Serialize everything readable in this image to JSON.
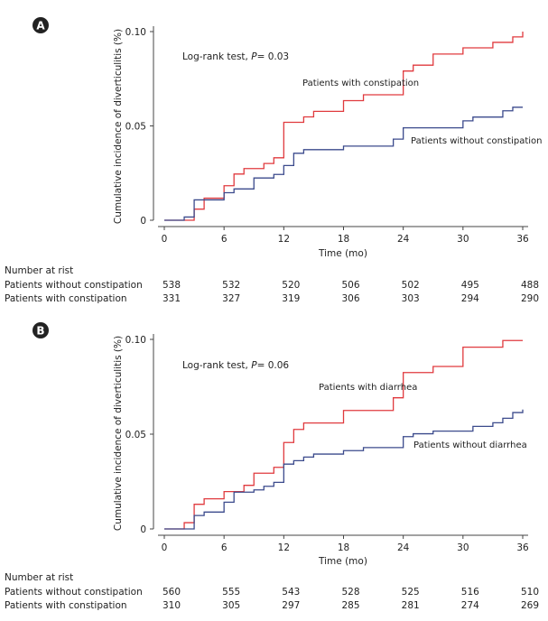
{
  "chart_data": [
    {
      "type": "line",
      "panel_label": "A",
      "annotation": "Log-rank test, ",
      "annotation_p": "P",
      "annotation_value": "= 0.03",
      "xlabel": "Time (mo)",
      "ylabel": "Cumulative incidence of diverticulitis (%)",
      "xlim": [
        0,
        36
      ],
      "ylim": [
        0,
        0.1
      ],
      "xticks": [
        "0",
        "6",
        "12",
        "18",
        "24",
        "30",
        "36"
      ],
      "yticks": [
        "0",
        "0.05",
        "0.10"
      ],
      "series": [
        {
          "name": "Patients with constipation",
          "color": "#e03a3e",
          "steps": [
            [
              0,
              0
            ],
            [
              3,
              0.0059
            ],
            [
              4,
              0.0117
            ],
            [
              6,
              0.0183
            ],
            [
              7,
              0.0245
            ],
            [
              8,
              0.0274
            ],
            [
              10,
              0.0301
            ],
            [
              11,
              0.0331
            ],
            [
              12,
              0.0519
            ],
            [
              14,
              0.0548
            ],
            [
              15,
              0.0577
            ],
            [
              18,
              0.0634
            ],
            [
              20,
              0.0665
            ],
            [
              24,
              0.0791
            ],
            [
              25,
              0.0822
            ],
            [
              27,
              0.0881
            ],
            [
              30,
              0.0914
            ],
            [
              33,
              0.0943
            ],
            [
              35,
              0.0972
            ],
            [
              36,
              0.1
            ]
          ]
        },
        {
          "name": "Patients without constipation",
          "color": "#3b4a8c",
          "steps": [
            [
              0,
              0
            ],
            [
              2,
              0.0017
            ],
            [
              3,
              0.0108
            ],
            [
              6,
              0.0146
            ],
            [
              7,
              0.0166
            ],
            [
              9,
              0.0224
            ],
            [
              11,
              0.0243
            ],
            [
              12,
              0.029
            ],
            [
              13,
              0.0355
            ],
            [
              14,
              0.0374
            ],
            [
              18,
              0.0393
            ],
            [
              23,
              0.043
            ],
            [
              24,
              0.049
            ],
            [
              30,
              0.0527
            ],
            [
              31,
              0.0547
            ],
            [
              34,
              0.058
            ],
            [
              35,
              0.0599
            ],
            [
              36,
              0.0599
            ]
          ]
        }
      ],
      "risk_table": {
        "title": "Number at rist",
        "rows": [
          {
            "label": "Patients without constipation",
            "values": [
              "538",
              "532",
              "520",
              "506",
              "502",
              "495",
              "488"
            ]
          },
          {
            "label": "Patients with constipation",
            "values": [
              "331",
              "327",
              "319",
              "306",
              "303",
              "294",
              "290"
            ]
          }
        ]
      }
    },
    {
      "type": "line",
      "panel_label": "B",
      "annotation": "Log-rank test, ",
      "annotation_p": "P",
      "annotation_value": "= 0.06",
      "xlabel": "Time (mo)",
      "ylabel": "Cumulative incidence of diverticulitis (%)",
      "xlim": [
        0,
        36
      ],
      "ylim": [
        0,
        0.1
      ],
      "xticks": [
        "0",
        "6",
        "12",
        "18",
        "24",
        "30",
        "36"
      ],
      "yticks": [
        "0",
        "0.05",
        "0.10"
      ],
      "series": [
        {
          "name": "Patients with diarrhea",
          "color": "#e03a3e",
          "steps": [
            [
              0,
              0
            ],
            [
              2,
              0.0033
            ],
            [
              3,
              0.013
            ],
            [
              4,
              0.0159
            ],
            [
              6,
              0.0197
            ],
            [
              8,
              0.023
            ],
            [
              9,
              0.0294
            ],
            [
              11,
              0.0325
            ],
            [
              12,
              0.0456
            ],
            [
              13,
              0.0525
            ],
            [
              14,
              0.0559
            ],
            [
              18,
              0.0625
            ],
            [
              23,
              0.0692
            ],
            [
              24,
              0.0825
            ],
            [
              27,
              0.0857
            ],
            [
              30,
              0.0959
            ],
            [
              34,
              0.0994
            ],
            [
              36,
              0.0994
            ]
          ]
        },
        {
          "name": "Patients without diarrhea",
          "color": "#3b4a8c",
          "steps": [
            [
              0,
              0
            ],
            [
              3,
              0.0071
            ],
            [
              4,
              0.0089
            ],
            [
              6,
              0.0141
            ],
            [
              7,
              0.0194
            ],
            [
              9,
              0.0206
            ],
            [
              10,
              0.0225
            ],
            [
              11,
              0.0246
            ],
            [
              12,
              0.0342
            ],
            [
              13,
              0.036
            ],
            [
              14,
              0.0379
            ],
            [
              15,
              0.0395
            ],
            [
              18,
              0.0413
            ],
            [
              20,
              0.0429
            ],
            [
              24,
              0.0487
            ],
            [
              25,
              0.0502
            ],
            [
              27,
              0.0516
            ],
            [
              31,
              0.0541
            ],
            [
              33,
              0.056
            ],
            [
              34,
              0.0584
            ],
            [
              35,
              0.0614
            ],
            [
              36,
              0.063
            ]
          ]
        }
      ],
      "risk_table": {
        "title": "Number at rist",
        "rows": [
          {
            "label": "Patients without constipation",
            "values": [
              "560",
              "555",
              "543",
              "528",
              "525",
              "516",
              "510"
            ]
          },
          {
            "label": "Patients with constipation",
            "values": [
              "310",
              "305",
              "297",
              "285",
              "281",
              "274",
              "269"
            ]
          }
        ]
      }
    }
  ]
}
